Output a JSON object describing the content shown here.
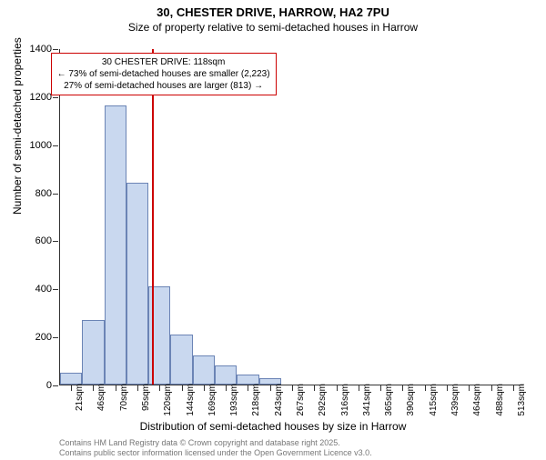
{
  "title": "30, CHESTER DRIVE, HARROW, HA2 7PU",
  "subtitle": "Size of property relative to semi-detached houses in Harrow",
  "chart": {
    "type": "histogram",
    "ylim": [
      0,
      1400
    ],
    "ytick_step": 200,
    "bar_color": "#c9d8ef",
    "bar_border": "#6b84b5",
    "ref_line_color": "#cc0000",
    "ref_line_x": 118,
    "x_categories": [
      "21sqm",
      "46sqm",
      "70sqm",
      "95sqm",
      "120sqm",
      "144sqm",
      "169sqm",
      "193sqm",
      "218sqm",
      "243sqm",
      "267sqm",
      "292sqm",
      "316sqm",
      "341sqm",
      "365sqm",
      "390sqm",
      "415sqm",
      "439sqm",
      "464sqm",
      "488sqm",
      "513sqm"
    ],
    "values": [
      50,
      270,
      1160,
      840,
      410,
      210,
      120,
      80,
      40,
      25,
      0,
      0,
      0,
      0,
      0,
      0,
      0,
      0,
      0,
      0,
      0
    ],
    "y_axis_title": "Number of semi-detached properties",
    "x_axis_title": "Distribution of semi-detached houses by size in Harrow",
    "annotation": {
      "line1": "30 CHESTER DRIVE: 118sqm",
      "line2": "← 73% of semi-detached houses are smaller (2,223)",
      "line3": "27% of semi-detached houses are larger (813) →"
    }
  },
  "credits": {
    "line1": "Contains HM Land Registry data © Crown copyright and database right 2025.",
    "line2": "Contains public sector information licensed under the Open Government Licence v3.0."
  }
}
